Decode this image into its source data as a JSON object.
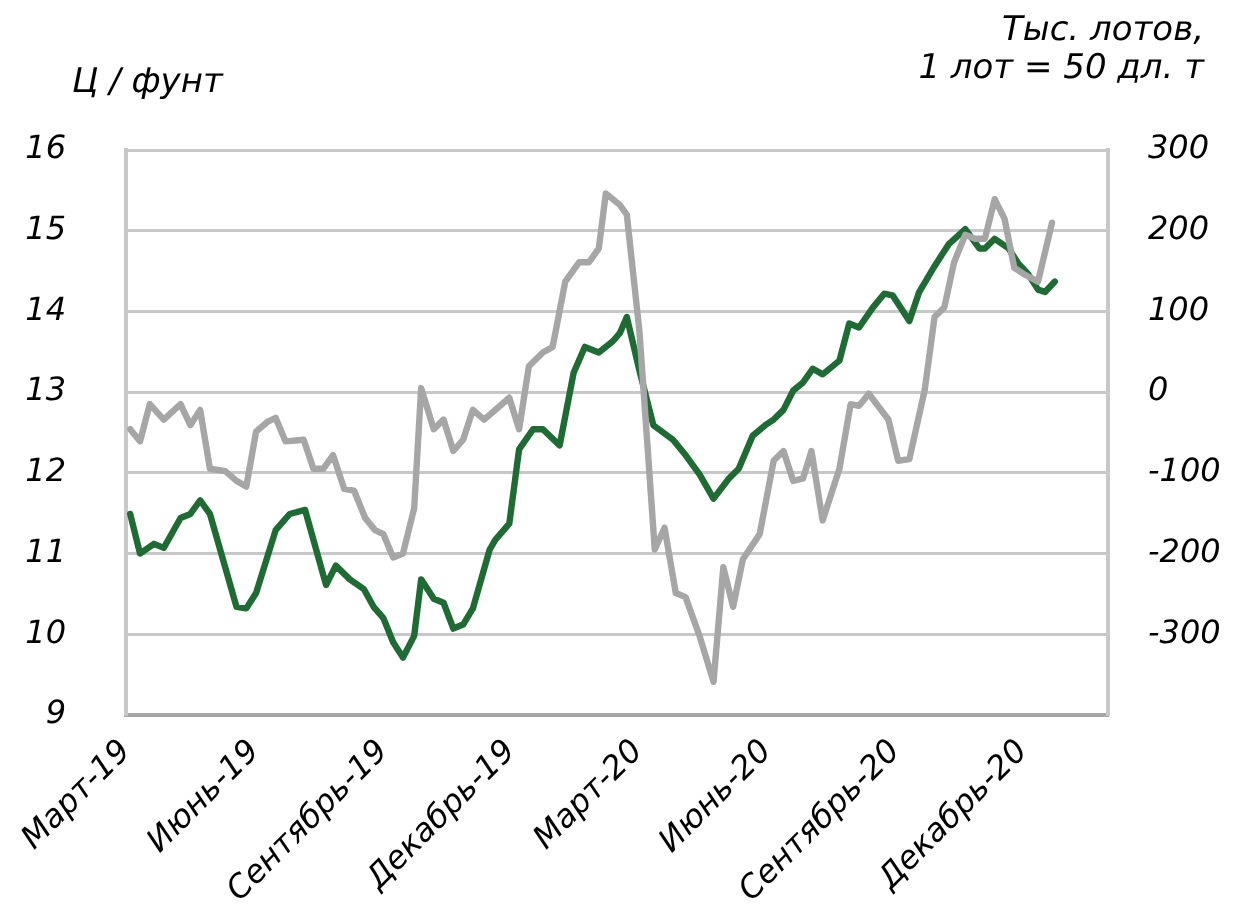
{
  "chart_data": {
    "type": "line",
    "ylabel": "Ц / фунт",
    "y2label": "Тыс. лотов,\n1 лот = 50 дл. т",
    "xlim": [
      "2019-03-01",
      "2021-01-31"
    ],
    "xticks": [
      {
        "value": "2019-03-01",
        "label": "Март-19"
      },
      {
        "value": "2019-06-01",
        "label": "Июнь-19"
      },
      {
        "value": "2019-09-01",
        "label": "Сентябрь-19"
      },
      {
        "value": "2019-12-01",
        "label": "Декабрь-19"
      },
      {
        "value": "2020-03-01",
        "label": "Март-20"
      },
      {
        "value": "2020-06-01",
        "label": "Июнь-20"
      },
      {
        "value": "2020-09-01",
        "label": "Сентябрь-20"
      },
      {
        "value": "2020-12-01",
        "label": "Декабрь-20"
      }
    ],
    "ylim": [
      9,
      16
    ],
    "yticks": [
      9,
      10,
      11,
      12,
      13,
      14,
      15,
      16
    ],
    "y2lim": [
      -400,
      300
    ],
    "y2ticks": [
      -300,
      -200,
      -100,
      0,
      100,
      200,
      300
    ],
    "grid": "y",
    "marker": "none",
    "line_style": "solid",
    "series": [
      {
        "color": "#a6a6a6",
        "axis": "y2",
        "x": [
          "2019-03-04",
          "2019-03-11",
          "2019-03-18",
          "2019-03-28",
          "2019-04-09",
          "2019-04-16",
          "2019-04-23",
          "2019-04-30",
          "2019-05-11",
          "2019-05-19",
          "2019-05-26",
          "2019-06-02",
          "2019-06-10",
          "2019-06-16",
          "2019-06-23",
          "2019-07-06",
          "2019-07-13",
          "2019-07-20",
          "2019-07-27",
          "2019-08-04",
          "2019-08-11",
          "2019-08-19",
          "2019-08-26",
          "2019-09-01",
          "2019-09-08",
          "2019-09-15",
          "2019-09-23",
          "2019-09-28",
          "2019-10-07",
          "2019-10-14",
          "2019-10-21",
          "2019-10-28",
          "2019-11-04",
          "2019-11-12",
          "2019-11-30",
          "2019-12-07",
          "2019-12-14",
          "2019-12-24",
          "2019-12-31",
          "2020-01-09",
          "2020-01-19",
          "2020-01-26",
          "2020-02-02",
          "2020-02-07",
          "2020-02-17",
          "2020-02-22",
          "2020-03-02",
          "2020-03-13",
          "2020-03-20",
          "2020-03-28",
          "2020-04-04",
          "2020-04-14",
          "2020-04-24",
          "2020-05-01",
          "2020-05-08",
          "2020-05-15",
          "2020-05-27",
          "2020-06-06",
          "2020-06-13",
          "2020-06-20",
          "2020-06-27",
          "2020-07-03",
          "2020-07-11",
          "2020-07-23",
          "2020-07-31",
          "2020-08-06",
          "2020-08-13",
          "2020-08-27",
          "2020-09-03",
          "2020-09-11",
          "2020-09-22",
          "2020-09-29",
          "2020-10-06",
          "2020-10-13",
          "2020-10-21",
          "2020-10-28",
          "2020-11-04",
          "2020-11-11",
          "2020-11-18",
          "2020-11-25",
          "2020-12-02",
          "2020-12-12",
          "2020-12-22"
        ],
        "values": [
          -46,
          -61,
          -15,
          -34,
          -15,
          -41,
          -22,
          -95,
          -98,
          -110,
          -117,
          -49,
          -37,
          -32,
          -61,
          -59,
          -95,
          -95,
          -78,
          -120,
          -122,
          -156,
          -171,
          -176,
          -205,
          -200,
          -144,
          5,
          -46,
          -34,
          -73,
          -59,
          -22,
          -34,
          -7,
          -46,
          32,
          49,
          56,
          137,
          161,
          161,
          178,
          246,
          232,
          220,
          76,
          -195,
          -168,
          -249,
          -254,
          -302,
          -359,
          -217,
          -266,
          -207,
          -176,
          -85,
          -73,
          -110,
          -107,
          -73,
          -159,
          -95,
          -15,
          -17,
          -2,
          -34,
          -85,
          -83,
          3,
          93,
          105,
          161,
          195,
          190,
          190,
          239,
          215,
          154,
          146,
          137,
          210
        ]
      },
      {
        "color": "#1e6b34",
        "x": [
          "2019-03-04",
          "2019-03-11",
          "2019-03-21",
          "2019-03-28",
          "2019-04-09",
          "2019-04-16",
          "2019-04-23",
          "2019-04-30",
          "2019-05-19",
          "2019-05-26",
          "2019-06-02",
          "2019-06-16",
          "2019-06-26",
          "2019-07-07",
          "2019-07-13",
          "2019-07-22",
          "2019-07-29",
          "2019-08-08",
          "2019-08-18",
          "2019-08-25",
          "2019-09-01",
          "2019-09-08",
          "2019-09-15",
          "2019-09-23",
          "2019-09-28",
          "2019-10-07",
          "2019-10-14",
          "2019-10-21",
          "2019-10-28",
          "2019-11-04",
          "2019-11-16",
          "2019-11-20",
          "2019-11-30",
          "2019-12-07",
          "2019-12-17",
          "2019-12-24",
          "2020-01-05",
          "2020-01-15",
          "2020-01-23",
          "2020-02-02",
          "2020-02-12",
          "2020-02-17",
          "2020-02-22",
          "2020-03-02",
          "2020-03-12",
          "2020-03-26",
          "2020-04-04",
          "2020-04-14",
          "2020-04-24",
          "2020-05-05",
          "2020-05-12",
          "2020-05-22",
          "2020-05-31",
          "2020-06-06",
          "2020-06-13",
          "2020-06-20",
          "2020-06-27",
          "2020-07-04",
          "2020-07-11",
          "2020-07-23",
          "2020-07-30",
          "2020-08-06",
          "2020-08-16",
          "2020-08-24",
          "2020-08-30",
          "2020-09-11",
          "2020-09-18",
          "2020-09-29",
          "2020-10-09",
          "2020-10-21",
          "2020-10-31",
          "2020-11-04",
          "2020-11-11",
          "2020-11-21",
          "2020-11-28",
          "2020-12-05",
          "2020-12-12",
          "2020-12-17",
          "2020-12-24"
        ],
        "values": [
          11.49,
          11.0,
          11.12,
          11.07,
          11.44,
          11.49,
          11.66,
          11.49,
          10.34,
          10.32,
          10.51,
          11.29,
          11.49,
          11.54,
          11.17,
          10.61,
          10.85,
          10.68,
          10.56,
          10.34,
          10.2,
          9.9,
          9.71,
          9.98,
          10.68,
          10.44,
          10.39,
          10.07,
          10.12,
          10.32,
          11.05,
          11.17,
          11.37,
          12.29,
          12.54,
          12.54,
          12.34,
          13.24,
          13.56,
          13.49,
          13.63,
          13.73,
          13.93,
          13.27,
          12.59,
          12.41,
          12.22,
          11.98,
          11.68,
          11.93,
          12.05,
          12.46,
          12.59,
          12.66,
          12.78,
          13.02,
          13.12,
          13.29,
          13.22,
          13.39,
          13.85,
          13.8,
          14.05,
          14.22,
          14.2,
          13.88,
          14.24,
          14.56,
          14.83,
          15.02,
          14.78,
          14.78,
          14.9,
          14.78,
          14.59,
          14.46,
          14.27,
          14.24,
          14.37
        ]
      }
    ]
  }
}
